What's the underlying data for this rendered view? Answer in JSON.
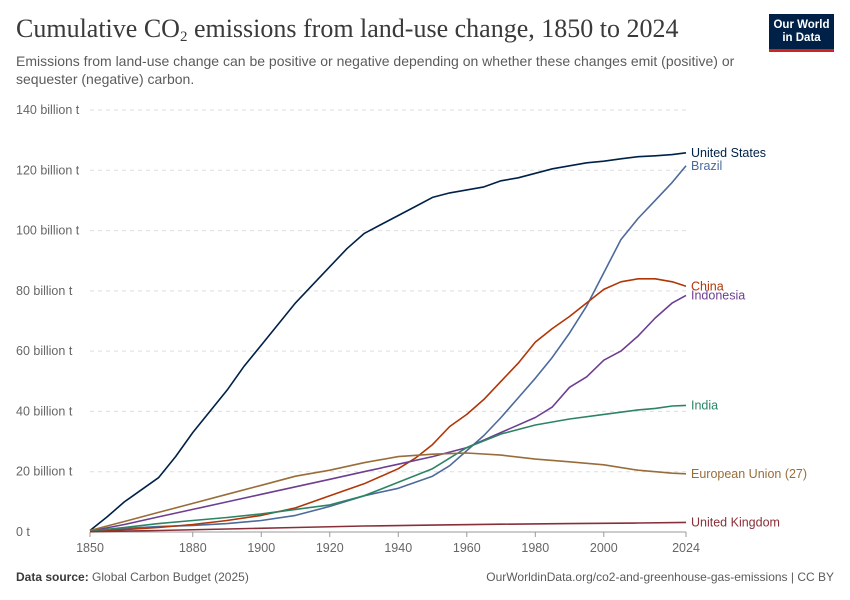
{
  "header": {
    "title_prefix": "Cumulative CO",
    "title_sub": "2",
    "title_suffix": " emissions from land-use change, 1850 to 2024",
    "subtitle": "Emissions from land-use change can be positive or negative depending on whether these changes emit (positive) or sequester (negative) carbon."
  },
  "logo": {
    "line1": "Our World",
    "line2": "in Data"
  },
  "footer": {
    "source_label": "Data source:",
    "source_value": "Global Carbon Budget (2025)",
    "url": "OurWorldinData.org/co2-and-greenhouse-gas-emissions | CC BY"
  },
  "chart_data": {
    "type": "line",
    "title": "Cumulative CO2 emissions from land-use change, 1850 to 2024",
    "x_ticks": [
      1850,
      1880,
      1900,
      1920,
      1940,
      1960,
      1980,
      2000,
      2024
    ],
    "x_tick_labels": [
      "1850",
      "1880",
      "1900",
      "1920",
      "1940",
      "1960",
      "1980",
      "2000",
      "2024"
    ],
    "y_ticks": [
      0,
      20,
      40,
      60,
      80,
      100,
      120,
      140
    ],
    "y_tick_labels": [
      "0 t",
      "20 billion t",
      "40 billion t",
      "60 billion t",
      "80 billion t",
      "100 billion t",
      "120 billion t",
      "140 billion t"
    ],
    "xlim": [
      1850,
      2024
    ],
    "ylim": [
      0,
      140
    ],
    "grid": "horizontal-dashed",
    "legend": "inline-right",
    "series": [
      {
        "name": "United States",
        "color": "#002147",
        "x": [
          1850,
          1855,
          1860,
          1865,
          1870,
          1875,
          1880,
          1885,
          1890,
          1895,
          1900,
          1905,
          1910,
          1915,
          1920,
          1925,
          1930,
          1935,
          1940,
          1945,
          1950,
          1955,
          1960,
          1965,
          1970,
          1975,
          1980,
          1985,
          1990,
          1995,
          2000,
          2005,
          2010,
          2015,
          2020,
          2024
        ],
        "y": [
          0.5,
          5,
          10,
          14,
          18,
          25,
          33,
          40,
          47,
          55,
          62,
          69,
          76,
          82,
          88,
          94,
          99,
          102,
          105,
          108,
          111,
          112.5,
          113.5,
          114.5,
          116.5,
          117.5,
          119,
          120.5,
          121.5,
          122.5,
          123,
          123.8,
          124.5,
          124.8,
          125.2,
          125.8
        ]
      },
      {
        "name": "Brazil",
        "color": "#4c6a9c",
        "x": [
          1850,
          1860,
          1870,
          1880,
          1890,
          1900,
          1910,
          1920,
          1930,
          1940,
          1950,
          1955,
          1960,
          1965,
          1970,
          1975,
          1980,
          1985,
          1990,
          1995,
          2000,
          2005,
          2010,
          2015,
          2020,
          2024
        ],
        "y": [
          0.3,
          1.2,
          1.8,
          2.2,
          2.8,
          3.8,
          5.5,
          8.5,
          12,
          14.5,
          18.5,
          22,
          27,
          32,
          38,
          44.5,
          51,
          58,
          66,
          75,
          86,
          97,
          104,
          110,
          116,
          121.5
        ]
      },
      {
        "name": "China",
        "color": "#b13507",
        "x": [
          1850,
          1860,
          1870,
          1880,
          1890,
          1900,
          1910,
          1920,
          1930,
          1940,
          1945,
          1950,
          1955,
          1960,
          1965,
          1970,
          1975,
          1980,
          1985,
          1990,
          1995,
          2000,
          2005,
          2010,
          2015,
          2020,
          2024
        ],
        "y": [
          0.2,
          0.8,
          1.5,
          2.5,
          3.8,
          5.5,
          8,
          12,
          16,
          21,
          24.5,
          29,
          35,
          39,
          44,
          50,
          56,
          63,
          67.5,
          71.5,
          76,
          80.5,
          83,
          84,
          84,
          83,
          81.5
        ]
      },
      {
        "name": "Indonesia",
        "color": "#6d3e91",
        "x": [
          1850,
          1860,
          1870,
          1880,
          1890,
          1900,
          1910,
          1920,
          1930,
          1940,
          1950,
          1960,
          1970,
          1980,
          1985,
          1990,
          1995,
          2000,
          2005,
          2010,
          2015,
          2020,
          2024
        ],
        "y": [
          0.3,
          2.5,
          5,
          7.5,
          10,
          12.5,
          15,
          17.5,
          20,
          22.5,
          25,
          28,
          33,
          38,
          41.5,
          48,
          51.5,
          57,
          60,
          65,
          71,
          76,
          78.5
        ]
      },
      {
        "name": "India",
        "color": "#2c8465",
        "x": [
          1850,
          1860,
          1870,
          1880,
          1890,
          1900,
          1910,
          1920,
          1930,
          1940,
          1950,
          1960,
          1970,
          1980,
          1990,
          2000,
          2010,
          2015,
          2020,
          2024
        ],
        "y": [
          0.3,
          1.5,
          2.8,
          3.8,
          4.8,
          6,
          7.5,
          9,
          12,
          16.5,
          21,
          28,
          32.5,
          35.5,
          37.5,
          39,
          40.5,
          41,
          41.8,
          42
        ]
      },
      {
        "name": "European Union (27)",
        "color": "#996d39",
        "x": [
          1850,
          1860,
          1870,
          1880,
          1890,
          1900,
          1910,
          1920,
          1930,
          1940,
          1950,
          1960,
          1970,
          1980,
          1990,
          2000,
          2010,
          2020,
          2024
        ],
        "y": [
          0.5,
          3.5,
          6.5,
          9.5,
          12.5,
          15.5,
          18.5,
          20.5,
          23,
          25,
          25.8,
          26.2,
          25.5,
          24.2,
          23.3,
          22.3,
          20.5,
          19.5,
          19.3
        ]
      },
      {
        "name": "United Kingdom",
        "color": "#883039",
        "x": [
          1850,
          1870,
          1890,
          1910,
          1930,
          1950,
          1970,
          1990,
          2010,
          2024
        ],
        "y": [
          0.1,
          0.5,
          1.0,
          1.5,
          2.0,
          2.3,
          2.6,
          2.8,
          3.0,
          3.2
        ]
      }
    ]
  }
}
